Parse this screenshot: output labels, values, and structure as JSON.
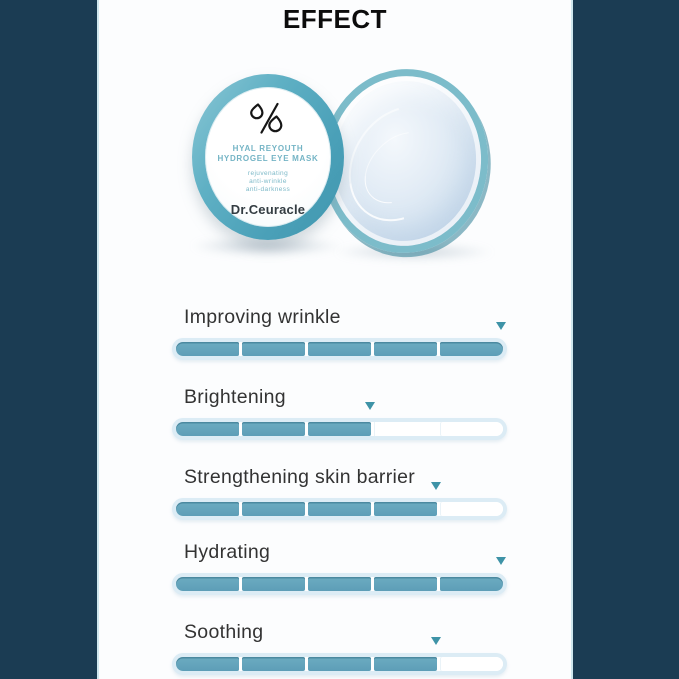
{
  "header": {
    "title": "EFFECT"
  },
  "product": {
    "logo_icon": "percent-droplets-logo",
    "name_line1": "HYAL REYOUTH",
    "name_line2": "HYDROGEL EYE MASK",
    "claims": [
      "rejuvenating",
      "anti-wrinkle",
      "anti-darkness"
    ],
    "brand": "Dr.Ceuracle"
  },
  "bars": [
    {
      "label": "Improving wrinkle",
      "segments_total": 5,
      "segments_filled": 5,
      "percent": 100
    },
    {
      "label": "Brightening",
      "segments_total": 5,
      "segments_filled": 3,
      "percent": 60
    },
    {
      "label": "Strengthening skin barrier",
      "segments_total": 5,
      "segments_filled": 4,
      "percent": 80
    },
    {
      "label": "Hydrating",
      "segments_total": 5,
      "segments_filled": 5,
      "percent": 100
    },
    {
      "label": "Soothing",
      "segments_total": 5,
      "segments_filled": 4,
      "percent": 80
    }
  ],
  "chart_data": {
    "type": "bar",
    "orientation": "horizontal",
    "title": "EFFECT",
    "categories": [
      "Improving wrinkle",
      "Brightening",
      "Strengthening skin barrier",
      "Hydrating",
      "Soothing"
    ],
    "values": [
      100,
      60,
      80,
      100,
      80
    ],
    "value_unit": "percent of 5-segment scale",
    "segments_filled": [
      5,
      3,
      4,
      5,
      4
    ],
    "segments_total": 5,
    "marker": "down-triangle at fill end",
    "xlim": [
      0,
      100
    ],
    "grid": false,
    "legend": false
  },
  "colors": {
    "navy_frame": "#1b3c53",
    "panel_bg": "#fcfdfe",
    "bar_fill": "#61a3bb",
    "bar_track_border": "#dcecf5",
    "arrow": "#3e93a7",
    "jar_rim": "#54a9bf",
    "gel": "#d6e4f1",
    "label_teal_text": "#74b4c5",
    "title_text": "#0c0c0c",
    "body_text": "#333333"
  }
}
